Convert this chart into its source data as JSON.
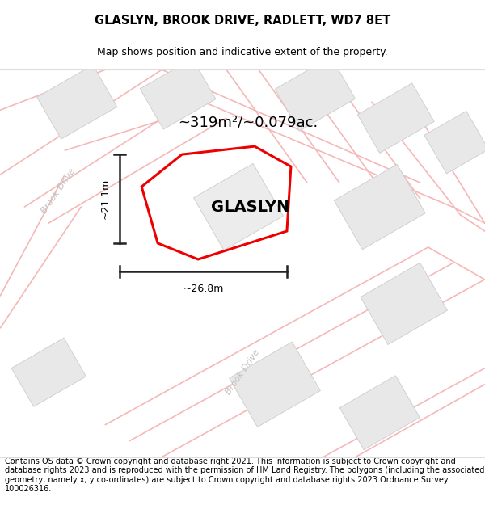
{
  "title": "GLASLYN, BROOK DRIVE, RADLETT, WD7 8ET",
  "subtitle": "Map shows position and indicative extent of the property.",
  "footer": "Contains OS data © Crown copyright and database right 2021. This information is subject to Crown copyright and database rights 2023 and is reproduced with the permission of HM Land Registry. The polygons (including the associated geometry, namely x, y co-ordinates) are subject to Crown copyright and database rights 2023 Ordnance Survey 100026316.",
  "bg_color": "#ffffff",
  "map_bg": "#ffffff",
  "road_color": "#f5b8b8",
  "building_color": "#e8e8e8",
  "building_outline": "#cccccc",
  "road_label_color": "#c0c0c0",
  "property_color": "#ee0000",
  "property_label": "GLASLYN",
  "area_label": "~319m²/~0.079ac.",
  "width_label": "~26.8m",
  "height_label": "~21.1m",
  "road_label_upper": "Brook Drive",
  "road_label_lower": "Brook Drive",
  "title_fontsize": 10.5,
  "subtitle_fontsize": 9,
  "footer_fontsize": 7.0
}
